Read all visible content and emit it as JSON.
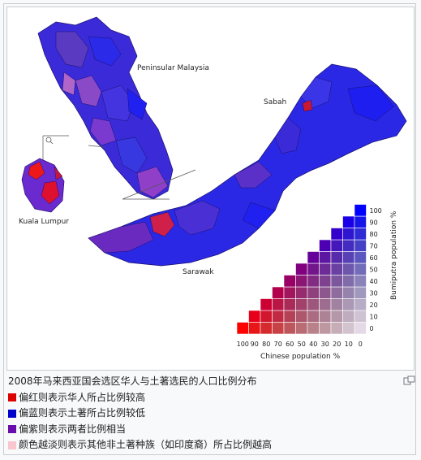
{
  "map": {
    "labels": {
      "peninsular": "Peninsular Malaysia",
      "sabah": "Sabah",
      "sarawak": "Sarawak",
      "kl": "Kuala Lumpur"
    },
    "matrix": {
      "x_label": "Chinese population %",
      "y_label": "Bumiputra population %",
      "x_ticks": [
        "100",
        "90",
        "80",
        "70",
        "60",
        "50",
        "40",
        "30",
        "20",
        "10",
        "0"
      ],
      "y_ticks": [
        "100",
        "90",
        "80",
        "70",
        "60",
        "50",
        "40",
        "30",
        "20",
        "10",
        "0"
      ]
    }
  },
  "caption": {
    "title": "2008年马来西亚国会选区华人与土著选民的人口比例分布",
    "legend": [
      {
        "color": "#dd0000",
        "text": "偏红则表示华人所占比例较高"
      },
      {
        "color": "#0000cc",
        "text": "偏蓝则表示土著所占比例较低"
      },
      {
        "color": "#6a0dad",
        "text": "偏紫则表示两者比例相当"
      },
      {
        "color": "#f9c6cf",
        "text": "颜色越淡则表示其他非土著种族（如印度裔）所占比例越高"
      }
    ]
  },
  "colors": {
    "red": "#ee0000",
    "blue": "#1a1aee",
    "purple": "#6a2aa8"
  }
}
